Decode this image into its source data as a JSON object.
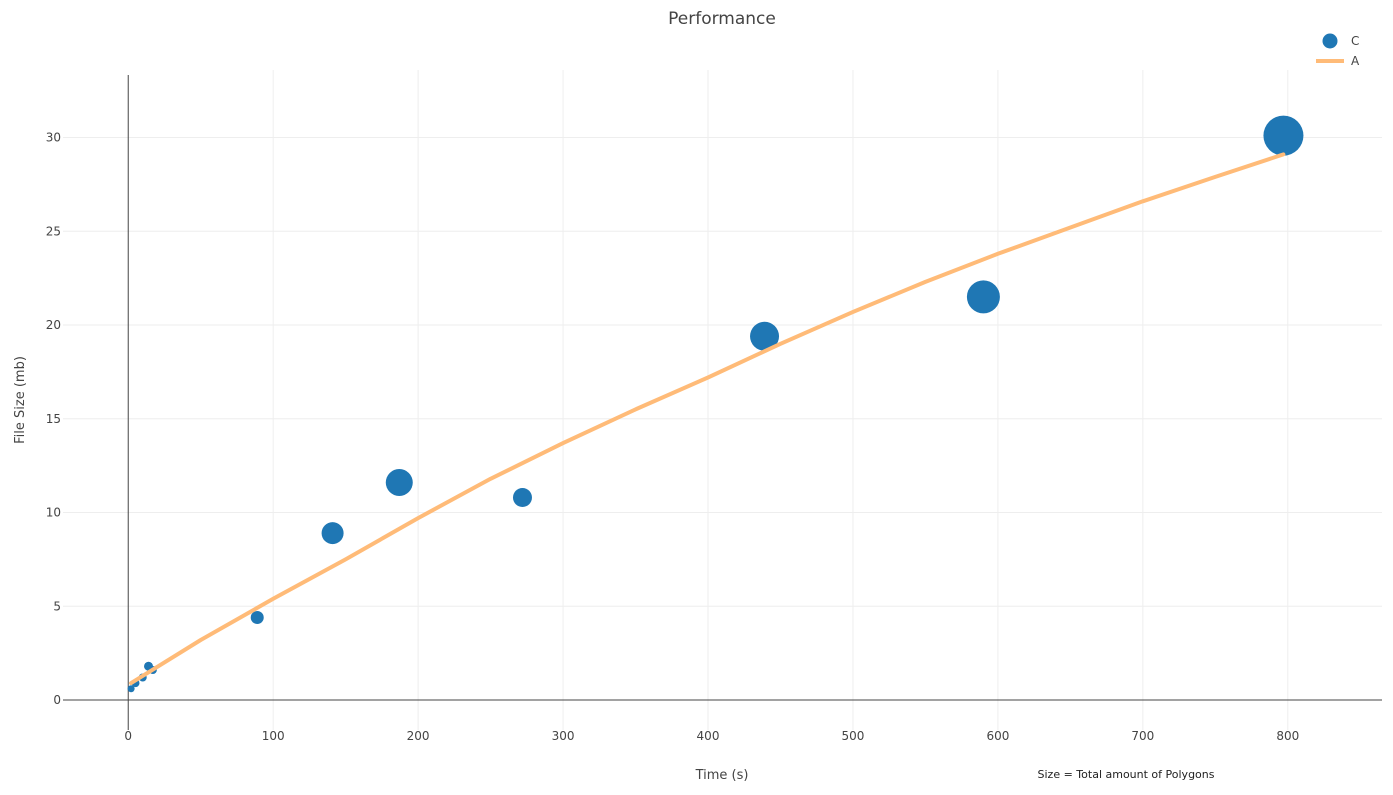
{
  "chart_data": {
    "type": "scatter",
    "title": "Performance",
    "xlabel": "Time (s)",
    "ylabel": "File Size (mb)",
    "xlim": [
      -45,
      865
    ],
    "ylim": [
      -1.6,
      33.6
    ],
    "x_ticks": [
      0,
      100,
      200,
      300,
      400,
      500,
      600,
      700,
      800
    ],
    "y_ticks": [
      0,
      5,
      10,
      15,
      20,
      25,
      30
    ],
    "grid": true,
    "legend_position": "top-right",
    "annotation": "Size = Total amount of Polygons",
    "series": [
      {
        "name": "C",
        "mode": "markers",
        "color": "#1f77b4",
        "marker_size_encoding": "Total amount of Polygons",
        "points": [
          {
            "x": 2,
            "y": 0.6,
            "size": 7
          },
          {
            "x": 5,
            "y": 0.9,
            "size": 8
          },
          {
            "x": 10,
            "y": 1.2,
            "size": 8
          },
          {
            "x": 14,
            "y": 1.8,
            "size": 9
          },
          {
            "x": 17,
            "y": 1.6,
            "size": 8
          },
          {
            "x": 89,
            "y": 4.4,
            "size": 13
          },
          {
            "x": 141,
            "y": 8.9,
            "size": 22
          },
          {
            "x": 187,
            "y": 11.6,
            "size": 27
          },
          {
            "x": 272,
            "y": 10.8,
            "size": 19
          },
          {
            "x": 439,
            "y": 19.4,
            "size": 29
          },
          {
            "x": 590,
            "y": 21.5,
            "size": 33
          },
          {
            "x": 797,
            "y": 30.1,
            "size": 40
          }
        ]
      },
      {
        "name": "A",
        "mode": "lines",
        "color": "#ffbb78",
        "points": [
          {
            "x": 2,
            "y": 0.9
          },
          {
            "x": 50,
            "y": 3.2
          },
          {
            "x": 100,
            "y": 5.4
          },
          {
            "x": 150,
            "y": 7.5
          },
          {
            "x": 200,
            "y": 9.7
          },
          {
            "x": 250,
            "y": 11.8
          },
          {
            "x": 300,
            "y": 13.7
          },
          {
            "x": 350,
            "y": 15.5
          },
          {
            "x": 400,
            "y": 17.2
          },
          {
            "x": 450,
            "y": 19.0
          },
          {
            "x": 500,
            "y": 20.7
          },
          {
            "x": 550,
            "y": 22.3
          },
          {
            "x": 600,
            "y": 23.8
          },
          {
            "x": 650,
            "y": 25.2
          },
          {
            "x": 700,
            "y": 26.6
          },
          {
            "x": 750,
            "y": 27.9
          },
          {
            "x": 797,
            "y": 29.1
          }
        ]
      }
    ]
  }
}
